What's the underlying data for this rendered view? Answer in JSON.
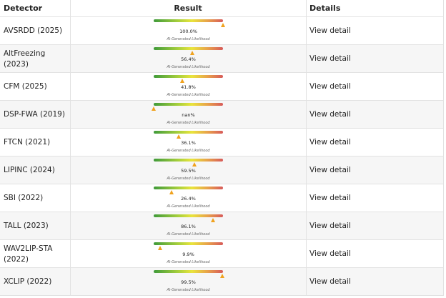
{
  "table": {
    "headers": [
      "Detector",
      "Result",
      "Details"
    ],
    "likelihood_range": [
      0,
      100
    ],
    "rows": [
      {
        "detector": "AVSRDD (2025)",
        "likelihood": 100.0,
        "likelihood_label": "100.0%",
        "caption": "AI-Generated Likelihood",
        "details": "View detail"
      },
      {
        "detector": "AltFreezing (2023)",
        "likelihood": 56.4,
        "likelihood_label": "56.4%",
        "caption": "AI-Generated Likelihood",
        "details": "View detail"
      },
      {
        "detector": "CFM (2025)",
        "likelihood": 41.8,
        "likelihood_label": "41.8%",
        "caption": "AI-Generated Likelihood",
        "details": "View detail"
      },
      {
        "detector": "DSP-FWA (2019)",
        "likelihood": null,
        "likelihood_label": "nan%",
        "caption": "AI-Generated Likelihood",
        "details": "View detail"
      },
      {
        "detector": "FTCN (2021)",
        "likelihood": 36.1,
        "likelihood_label": "36.1%",
        "caption": "AI-Generated Likelihood",
        "details": "View detail"
      },
      {
        "detector": "LIPINC (2024)",
        "likelihood": 59.5,
        "likelihood_label": "59.5%",
        "caption": "AI-Generated Likelihood",
        "details": "View detail"
      },
      {
        "detector": "SBI (2022)",
        "likelihood": 26.4,
        "likelihood_label": "26.4%",
        "caption": "AI-Generated Likelihood",
        "details": "View detail"
      },
      {
        "detector": "TALL (2023)",
        "likelihood": 86.1,
        "likelihood_label": "86.1%",
        "caption": "AI-Generated Likelihood",
        "details": "View detail"
      },
      {
        "detector": "WAV2LIP-STA (2022)",
        "likelihood": 9.9,
        "likelihood_label": "9.9%",
        "caption": "AI-Generated Likelihood",
        "details": "View detail"
      },
      {
        "detector": "XCLIP (2022)",
        "likelihood": 99.5,
        "likelihood_label": "99.5%",
        "caption": "AI-Generated Likelihood",
        "details": "View detail"
      }
    ]
  }
}
